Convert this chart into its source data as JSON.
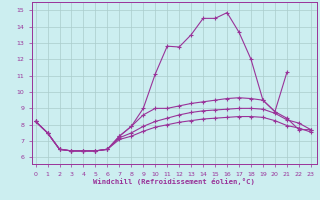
{
  "xlabel": "Windchill (Refroidissement éolien,°C)",
  "background_color": "#cceef0",
  "grid_color": "#aacccc",
  "line_color": "#993399",
  "x_ticks": [
    0,
    1,
    2,
    3,
    4,
    5,
    6,
    7,
    8,
    9,
    10,
    11,
    12,
    13,
    14,
    15,
    16,
    17,
    18,
    19,
    20,
    21,
    22,
    23
  ],
  "y_ticks": [
    6,
    7,
    8,
    9,
    10,
    11,
    12,
    13,
    14,
    15
  ],
  "xlim": [
    -0.3,
    23.5
  ],
  "ylim": [
    5.6,
    15.5
  ],
  "line1_x": [
    0,
    1,
    2,
    3,
    4,
    5,
    6,
    7,
    8,
    9,
    10,
    11,
    12,
    13,
    14,
    15,
    16,
    17,
    18,
    19,
    20,
    21
  ],
  "line1_y": [
    8.2,
    7.5,
    6.5,
    6.4,
    6.4,
    6.4,
    6.5,
    7.3,
    7.9,
    9.0,
    11.1,
    12.8,
    12.75,
    13.5,
    14.5,
    14.5,
    14.85,
    13.65,
    12.0,
    9.5,
    8.8,
    11.2
  ],
  "line2_x": [
    0,
    1,
    2,
    3,
    4,
    5,
    6,
    7,
    8,
    9,
    10,
    11,
    12,
    13,
    14,
    15,
    16,
    17,
    18,
    19,
    20,
    21,
    22,
    23
  ],
  "line2_y": [
    8.2,
    7.5,
    6.5,
    6.4,
    6.4,
    6.4,
    6.5,
    7.3,
    7.9,
    8.6,
    9.0,
    9.0,
    9.15,
    9.3,
    9.4,
    9.5,
    9.6,
    9.65,
    9.6,
    9.5,
    8.8,
    8.4,
    7.7,
    7.7
  ],
  "line3_x": [
    0,
    1,
    2,
    3,
    4,
    5,
    6,
    7,
    8,
    9,
    10,
    11,
    12,
    13,
    14,
    15,
    16,
    17,
    18,
    19,
    20,
    21,
    22,
    23
  ],
  "line3_y": [
    8.2,
    7.5,
    6.5,
    6.4,
    6.4,
    6.4,
    6.5,
    7.2,
    7.5,
    7.9,
    8.2,
    8.4,
    8.6,
    8.75,
    8.85,
    8.9,
    8.95,
    9.0,
    9.0,
    8.95,
    8.7,
    8.3,
    8.1,
    7.7
  ],
  "line4_x": [
    0,
    1,
    2,
    3,
    4,
    5,
    6,
    7,
    8,
    9,
    10,
    11,
    12,
    13,
    14,
    15,
    16,
    17,
    18,
    19,
    20,
    21,
    22,
    23
  ],
  "line4_y": [
    8.2,
    7.5,
    6.5,
    6.4,
    6.4,
    6.4,
    6.5,
    7.1,
    7.3,
    7.6,
    7.85,
    8.0,
    8.15,
    8.25,
    8.35,
    8.4,
    8.45,
    8.5,
    8.5,
    8.45,
    8.25,
    7.95,
    7.8,
    7.55
  ]
}
